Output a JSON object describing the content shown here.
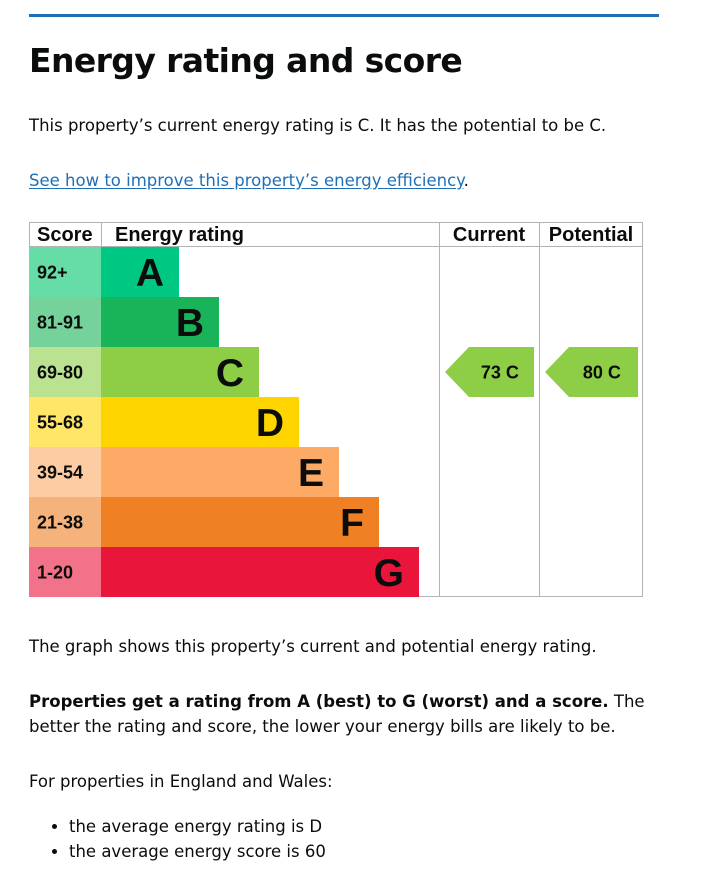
{
  "page": {
    "title": "Energy rating and score",
    "intro": "This property’s current energy rating is C. It has the potential to be C.",
    "improve_link": "See how to improve this property’s energy efficiency",
    "improve_suffix": ".",
    "graph_caption": "The graph shows this property’s current and potential energy rating.",
    "ratings_bold": "Properties get a rating from A (best) to G (worst) and a score.",
    "ratings_rest": " The better the rating and score, the lower your energy bills are likely to be.",
    "region_intro": "For properties in England and Wales:",
    "averages": [
      "the average energy rating is D",
      "the average energy score is 60"
    ]
  },
  "colors": {
    "link": "#1d70b8",
    "rule": "#1d70b8"
  },
  "chart_data": {
    "type": "table",
    "headers": {
      "score": "Score",
      "rating": "Energy rating",
      "current": "Current",
      "potential": "Potential"
    },
    "bands": [
      {
        "range": "92+",
        "letter": "A",
        "color": "#00c781",
        "score_bg": "#66dda7"
      },
      {
        "range": "81-91",
        "letter": "B",
        "color": "#19b459",
        "score_bg": "#75d29b"
      },
      {
        "range": "69-80",
        "letter": "C",
        "color": "#8dce46",
        "score_bg": "#bbe290"
      },
      {
        "range": "55-68",
        "letter": "D",
        "color": "#ffd500",
        "score_bg": "#ffe666"
      },
      {
        "range": "39-54",
        "letter": "E",
        "color": "#fcaa65",
        "score_bg": "#fdcca3"
      },
      {
        "range": "21-38",
        "letter": "F",
        "color": "#ef8023",
        "score_bg": "#f5b37b"
      },
      {
        "range": "1-20",
        "letter": "G",
        "color": "#e9153b",
        "score_bg": "#f27389"
      }
    ],
    "current": {
      "score": 73,
      "letter": "C",
      "label": "73 C"
    },
    "potential": {
      "score": 80,
      "letter": "C",
      "label": "80 C"
    }
  }
}
